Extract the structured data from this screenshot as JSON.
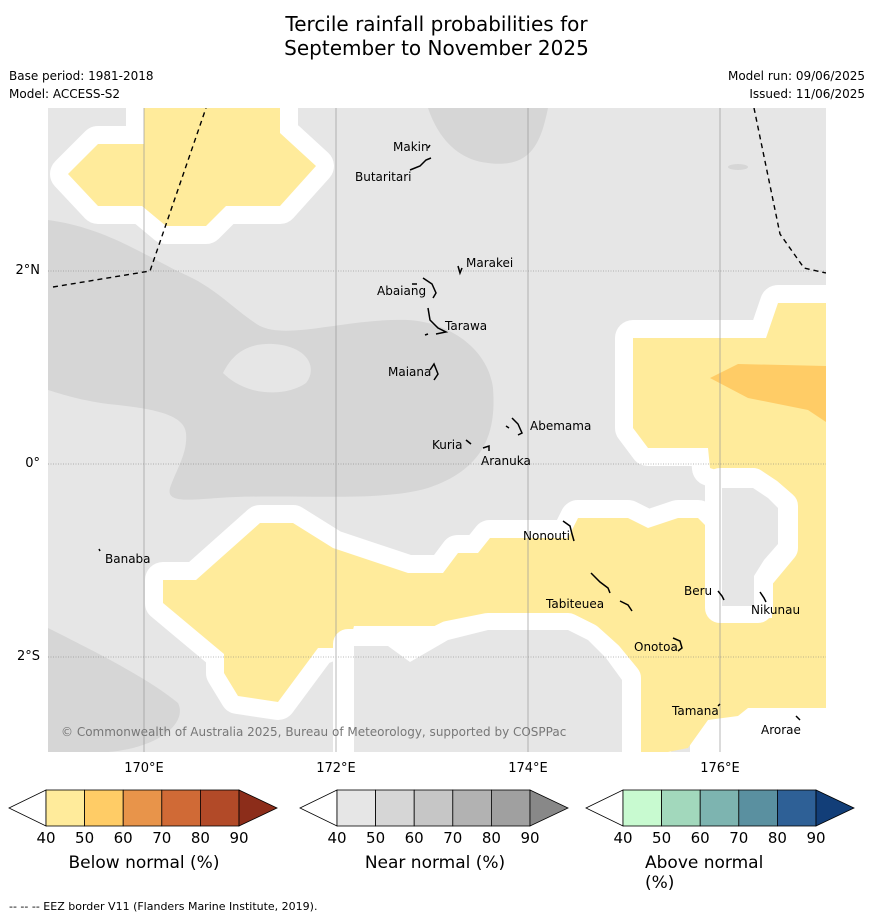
{
  "title_line1": "Tercile rainfall probabilities for",
  "title_line2": "September to November 2025",
  "meta": {
    "base_period": "Base period: 1981-2018",
    "model": "Model: ACCESS-S2",
    "model_run": "Model run: 09/06/2025",
    "issued": "Issued: 11/06/2025"
  },
  "map": {
    "lat_labels": [
      "2°N",
      "0°",
      "2°S"
    ],
    "lon_labels": [
      "170°E",
      "172°E",
      "174°E",
      "176°E"
    ],
    "copyright": "© Commonwealth of Australia 2025, Bureau of Meteorology, supported by COSPPac",
    "islands": [
      "Makin",
      "Butaritari",
      "Marakei",
      "Abaiang",
      "Tarawa",
      "Maiana",
      "Abemama",
      "Kuria",
      "Aranuka",
      "Banaba",
      "Nonouti",
      "Tabiteuea",
      "Beru",
      "Nikunau",
      "Onotoa",
      "Tamana",
      "Arorae"
    ],
    "colors": {
      "near_normal_light": "#e6e6e6",
      "near_normal_mid": "#d6d6d6",
      "below_50": "#ffeb9b",
      "below_60": "#ffcc66",
      "buffer": "#ffffff"
    }
  },
  "colorbars": [
    {
      "title": "Below normal (%)",
      "ticks": [
        "40",
        "50",
        "60",
        "70",
        "80",
        "90"
      ],
      "colors": [
        "#ffffff",
        "#ffeb9b",
        "#ffcc66",
        "#e8944a",
        "#d06a36",
        "#b24a28",
        "#8c2d1a"
      ]
    },
    {
      "title": "Near normal (%)",
      "ticks": [
        "40",
        "50",
        "60",
        "70",
        "80",
        "90"
      ],
      "colors": [
        "#ffffff",
        "#e6e6e6",
        "#d6d6d6",
        "#c6c6c6",
        "#b2b2b2",
        "#a0a0a0",
        "#888888"
      ]
    },
    {
      "title": "Above normal (%)",
      "ticks": [
        "40",
        "50",
        "60",
        "70",
        "80",
        "90"
      ],
      "colors": [
        "#ffffff",
        "#c8fad0",
        "#a2d8bc",
        "#7db4b0",
        "#5a90a0",
        "#2e6096",
        "#123e78"
      ]
    }
  ],
  "footer": "--  --  -- EEZ border V11 (Flanders Marine Institute, 2019)."
}
